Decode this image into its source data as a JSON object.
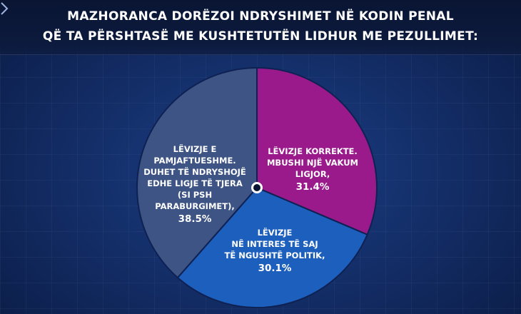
{
  "header": {
    "title_line1": "MAZHORANCA DORËZOI NDRYSHIMET NË KODIN PENAL",
    "title_line2": "QË TA PËRSHTASË ME KUSHTETUTËN LIDHUR ME PEZULLIMET:"
  },
  "chart_data": {
    "type": "pie",
    "title": "MAZHORANCA DORËZOI NDRYSHIMET NË KODIN PENAL QË TA PËRSHTASË ME KUSHTETUTËN LIDHUR ME PEZULLIMET:",
    "slices": [
      {
        "label_lines": [
          "LËVIZJE KORREKTE.",
          "MBUSHI NJË VAKUM",
          "LIGJOR,"
        ],
        "value": 31.4,
        "value_label": "31.4%",
        "color": "#9a1a8c"
      },
      {
        "label_lines": [
          "LËVIZJE",
          "NË INTERES TË SAJ",
          "TË NGUSHTË POLITIK,"
        ],
        "value": 30.1,
        "value_label": "30.1%",
        "color": "#1d5fbd"
      },
      {
        "label_lines": [
          "LËVIZJE E",
          "PAMJAFTUESHME.",
          "DUHET TË NDRYSHOJË",
          "EDHE LIGJE TË TJERA",
          "(SI PSH",
          "PARABURGIMET),"
        ],
        "value": 38.5,
        "value_label": "38.5%",
        "color": "#3d5484"
      }
    ]
  }
}
